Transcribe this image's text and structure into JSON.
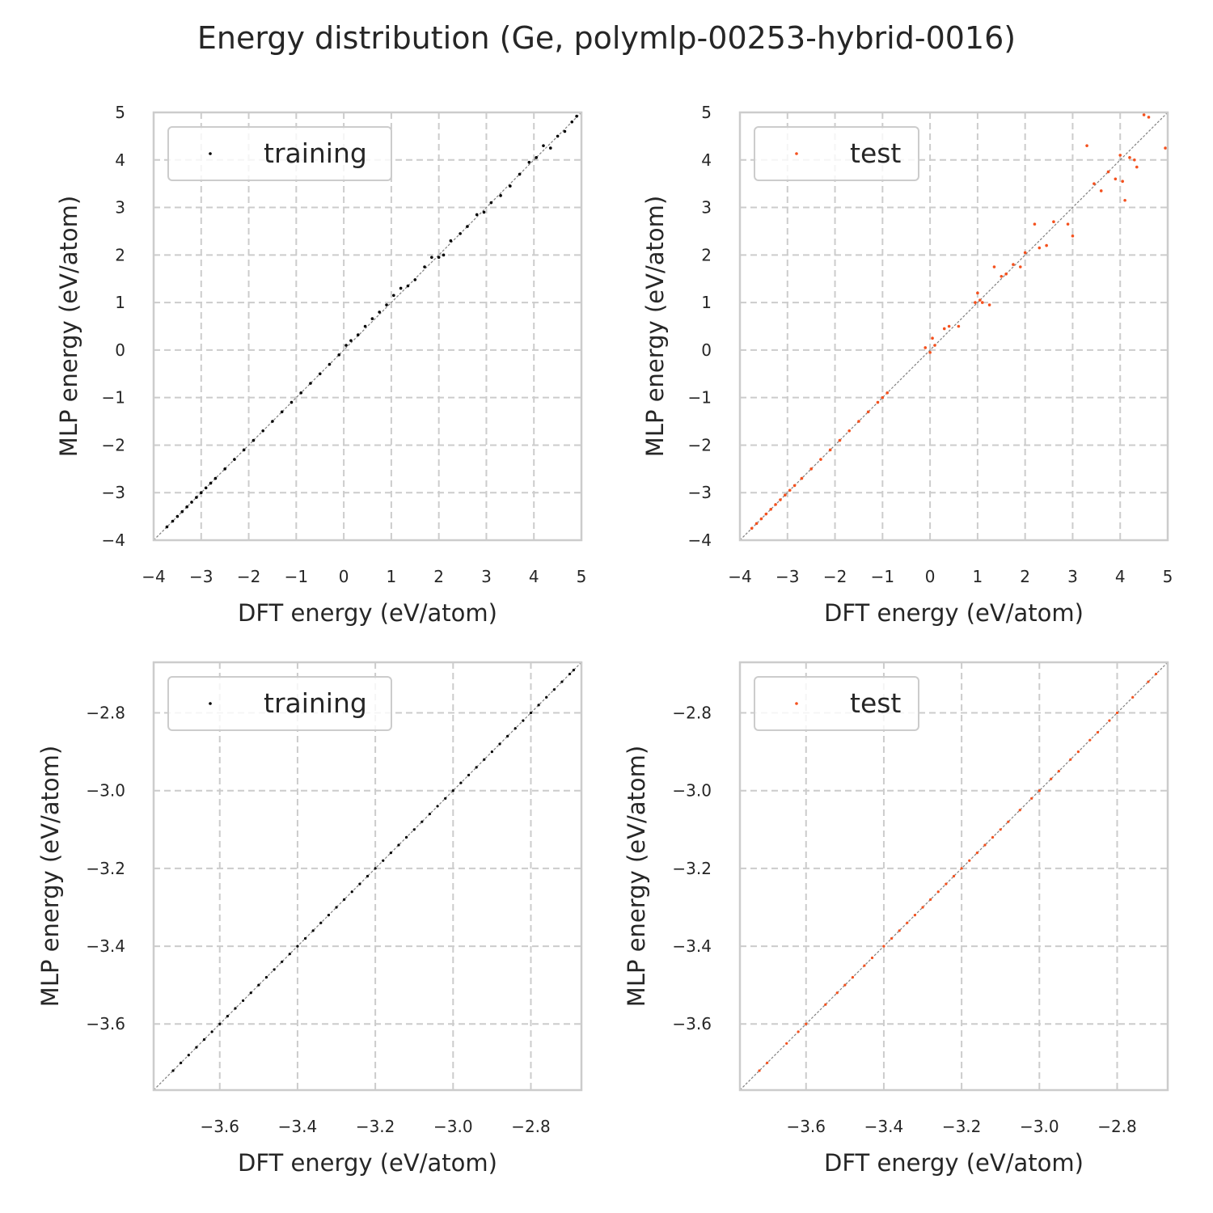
{
  "figure": {
    "title": "Energy distribution (Ge, polymlp-00253-hybrid-0016)"
  },
  "colors": {
    "training": "#000000",
    "test": "#f4511e",
    "grid": "#cccccc",
    "spine": "#cccccc",
    "diagonal": "#808080",
    "text": "#262626"
  },
  "chart_data": [
    {
      "type": "scatter",
      "xlabel": "DFT energy (eV/atom)",
      "ylabel": "MLP energy (eV/atom)",
      "xlim": [
        -4,
        5
      ],
      "ylim": [
        -4,
        5
      ],
      "xticks": [
        -4,
        -3,
        -2,
        -1,
        0,
        1,
        2,
        3,
        4,
        5
      ],
      "yticks": [
        -4,
        -3,
        -2,
        -1,
        0,
        1,
        2,
        3,
        4,
        5
      ],
      "xtick_labels": [
        "−4",
        "−3",
        "−2",
        "−1",
        "0",
        "1",
        "2",
        "3",
        "4",
        "5"
      ],
      "ytick_labels": [
        "−4",
        "−3",
        "−2",
        "−1",
        "0",
        "1",
        "2",
        "3",
        "4",
        "5"
      ],
      "grid": true,
      "diagonal": true,
      "legend": "upper-left",
      "series": [
        {
          "name": "training",
          "color": "#000000",
          "x": [
            -3.72,
            -3.6,
            -3.5,
            -3.4,
            -3.3,
            -3.2,
            -3.1,
            -3.0,
            -2.9,
            -2.8,
            -2.7,
            -2.5,
            -2.3,
            -2.1,
            -1.9,
            -1.7,
            -1.5,
            -1.3,
            -1.1,
            -0.9,
            -0.7,
            -0.5,
            -0.3,
            -0.1,
            0.05,
            0.15,
            0.3,
            0.45,
            0.6,
            0.75,
            0.9,
            1.05,
            1.2,
            1.35,
            1.5,
            1.7,
            1.85,
            2.0,
            2.1,
            2.25,
            2.45,
            2.6,
            2.8,
            2.95,
            3.1,
            3.3,
            3.5,
            3.7,
            3.9,
            4.05,
            4.2,
            4.35,
            4.5,
            4.65,
            4.8,
            4.9
          ],
          "y": [
            -3.72,
            -3.6,
            -3.5,
            -3.4,
            -3.3,
            -3.2,
            -3.1,
            -3.0,
            -2.9,
            -2.8,
            -2.7,
            -2.5,
            -2.3,
            -2.1,
            -1.9,
            -1.7,
            -1.5,
            -1.3,
            -1.1,
            -0.9,
            -0.7,
            -0.5,
            -0.3,
            -0.1,
            0.1,
            0.2,
            0.32,
            0.5,
            0.66,
            0.8,
            0.95,
            1.15,
            1.3,
            1.35,
            1.48,
            1.75,
            1.95,
            1.95,
            2.0,
            2.3,
            2.45,
            2.6,
            2.85,
            2.9,
            3.1,
            3.25,
            3.45,
            3.7,
            3.95,
            4.05,
            4.3,
            4.25,
            4.5,
            4.6,
            4.8,
            4.92
          ]
        }
      ]
    },
    {
      "type": "scatter",
      "xlabel": "DFT energy (eV/atom)",
      "ylabel": "MLP energy (eV/atom)",
      "xlim": [
        -4,
        5
      ],
      "ylim": [
        -4,
        5
      ],
      "xticks": [
        -4,
        -3,
        -2,
        -1,
        0,
        1,
        2,
        3,
        4,
        5
      ],
      "yticks": [
        -4,
        -3,
        -2,
        -1,
        0,
        1,
        2,
        3,
        4,
        5
      ],
      "xtick_labels": [
        "−4",
        "−3",
        "−2",
        "−1",
        "0",
        "1",
        "2",
        "3",
        "4",
        "5"
      ],
      "ytick_labels": [
        "−4",
        "−3",
        "−2",
        "−1",
        "0",
        "1",
        "2",
        "3",
        "4",
        "5"
      ],
      "grid": true,
      "diagonal": true,
      "legend": "upper-left",
      "series": [
        {
          "name": "test",
          "color": "#f4511e",
          "x": [
            -3.75,
            -3.65,
            -3.55,
            -3.45,
            -3.35,
            -3.25,
            -3.15,
            -3.05,
            -2.95,
            -2.85,
            -2.7,
            -2.5,
            -2.3,
            -2.1,
            -1.9,
            -1.7,
            -1.5,
            -1.3,
            -1.1,
            -1.0,
            -0.9,
            -0.1,
            0.0,
            0.05,
            0.1,
            0.3,
            0.4,
            0.6,
            0.95,
            1.0,
            1.05,
            1.1,
            1.25,
            1.35,
            1.5,
            1.6,
            1.75,
            1.9,
            2.0,
            2.2,
            2.3,
            2.45,
            2.6,
            2.9,
            3.0,
            3.3,
            3.45,
            3.6,
            3.75,
            3.9,
            4.0,
            4.05,
            4.1,
            4.2,
            4.3,
            4.35,
            4.5,
            4.6,
            4.95
          ],
          "y": [
            -3.75,
            -3.65,
            -3.55,
            -3.45,
            -3.35,
            -3.25,
            -3.15,
            -3.05,
            -2.95,
            -2.85,
            -2.7,
            -2.5,
            -2.3,
            -2.1,
            -1.9,
            -1.7,
            -1.5,
            -1.3,
            -1.1,
            -1.0,
            -0.9,
            0.05,
            -0.05,
            0.25,
            0.1,
            0.45,
            0.5,
            0.5,
            1.0,
            1.2,
            1.05,
            1.0,
            0.95,
            1.75,
            1.55,
            1.6,
            1.8,
            1.75,
            2.05,
            2.65,
            2.15,
            2.2,
            2.7,
            2.65,
            2.4,
            4.3,
            3.5,
            3.35,
            3.75,
            3.6,
            4.1,
            3.55,
            3.15,
            4.05,
            4.0,
            3.85,
            4.95,
            4.9,
            4.25
          ]
        }
      ]
    },
    {
      "type": "scatter",
      "xlabel": "DFT energy (eV/atom)",
      "ylabel": "MLP energy (eV/atom)",
      "xlim": [
        -3.77,
        -2.67
      ],
      "ylim": [
        -3.77,
        -2.67
      ],
      "xticks": [
        -3.6,
        -3.4,
        -3.2,
        -3.0,
        -2.8
      ],
      "yticks": [
        -3.6,
        -3.4,
        -3.2,
        -3.0,
        -2.8
      ],
      "xtick_labels": [
        "−3.6",
        "−3.4",
        "−3.2",
        "−3.0",
        "−2.8"
      ],
      "ytick_labels": [
        "−3.6",
        "−3.4",
        "−3.2",
        "−3.0",
        "−2.8"
      ],
      "grid": true,
      "diagonal": true,
      "legend": "upper-left",
      "series": [
        {
          "name": "training",
          "color": "#000000",
          "x": [
            -3.72,
            -3.7,
            -3.68,
            -3.66,
            -3.64,
            -3.62,
            -3.6,
            -3.58,
            -3.56,
            -3.54,
            -3.52,
            -3.5,
            -3.48,
            -3.46,
            -3.44,
            -3.42,
            -3.4,
            -3.38,
            -3.36,
            -3.34,
            -3.32,
            -3.3,
            -3.28,
            -3.26,
            -3.24,
            -3.22,
            -3.2,
            -3.18,
            -3.16,
            -3.14,
            -3.12,
            -3.1,
            -3.08,
            -3.06,
            -3.04,
            -3.02,
            -3.0,
            -2.98,
            -2.96,
            -2.94,
            -2.92,
            -2.9,
            -2.88,
            -2.86,
            -2.84,
            -2.82,
            -2.8,
            -2.78,
            -2.76,
            -2.74,
            -2.72,
            -2.7,
            -2.69
          ],
          "y": [
            -3.72,
            -3.7,
            -3.68,
            -3.66,
            -3.64,
            -3.62,
            -3.6,
            -3.58,
            -3.56,
            -3.54,
            -3.52,
            -3.5,
            -3.48,
            -3.46,
            -3.44,
            -3.42,
            -3.4,
            -3.38,
            -3.36,
            -3.34,
            -3.32,
            -3.3,
            -3.28,
            -3.26,
            -3.24,
            -3.22,
            -3.2,
            -3.18,
            -3.16,
            -3.14,
            -3.12,
            -3.1,
            -3.08,
            -3.06,
            -3.04,
            -3.02,
            -3.0,
            -2.98,
            -2.96,
            -2.94,
            -2.92,
            -2.9,
            -2.88,
            -2.86,
            -2.84,
            -2.82,
            -2.8,
            -2.78,
            -2.76,
            -2.74,
            -2.72,
            -2.7,
            -2.69
          ]
        }
      ]
    },
    {
      "type": "scatter",
      "xlabel": "DFT energy (eV/atom)",
      "ylabel": "MLP energy (eV/atom)",
      "xlim": [
        -3.77,
        -2.67
      ],
      "ylim": [
        -3.77,
        -2.67
      ],
      "xticks": [
        -3.6,
        -3.4,
        -3.2,
        -3.0,
        -2.8
      ],
      "yticks": [
        -3.6,
        -3.4,
        -3.2,
        -3.0,
        -2.8
      ],
      "xtick_labels": [
        "−3.6",
        "−3.4",
        "−3.2",
        "−3.0",
        "−2.8"
      ],
      "ytick_labels": [
        "−3.6",
        "−3.4",
        "−3.2",
        "−3.0",
        "−2.8"
      ],
      "grid": true,
      "diagonal": true,
      "legend": "upper-left",
      "series": [
        {
          "name": "test",
          "color": "#f4511e",
          "x": [
            -3.72,
            -3.7,
            -3.65,
            -3.62,
            -3.6,
            -3.55,
            -3.52,
            -3.5,
            -3.48,
            -3.45,
            -3.43,
            -3.4,
            -3.38,
            -3.36,
            -3.34,
            -3.32,
            -3.3,
            -3.28,
            -3.26,
            -3.24,
            -3.22,
            -3.2,
            -3.18,
            -3.16,
            -3.14,
            -3.12,
            -3.1,
            -3.08,
            -3.05,
            -3.02,
            -3.0,
            -2.97,
            -2.95,
            -2.92,
            -2.9,
            -2.87,
            -2.85,
            -2.82,
            -2.8,
            -2.76,
            -2.72,
            -2.7
          ],
          "y": [
            -3.72,
            -3.7,
            -3.65,
            -3.62,
            -3.6,
            -3.55,
            -3.52,
            -3.5,
            -3.48,
            -3.45,
            -3.43,
            -3.4,
            -3.38,
            -3.36,
            -3.34,
            -3.32,
            -3.3,
            -3.28,
            -3.26,
            -3.24,
            -3.22,
            -3.2,
            -3.18,
            -3.16,
            -3.14,
            -3.12,
            -3.1,
            -3.08,
            -3.05,
            -3.02,
            -3.0,
            -2.97,
            -2.95,
            -2.92,
            -2.9,
            -2.87,
            -2.85,
            -2.82,
            -2.8,
            -2.76,
            -2.72,
            -2.7
          ]
        }
      ]
    }
  ]
}
